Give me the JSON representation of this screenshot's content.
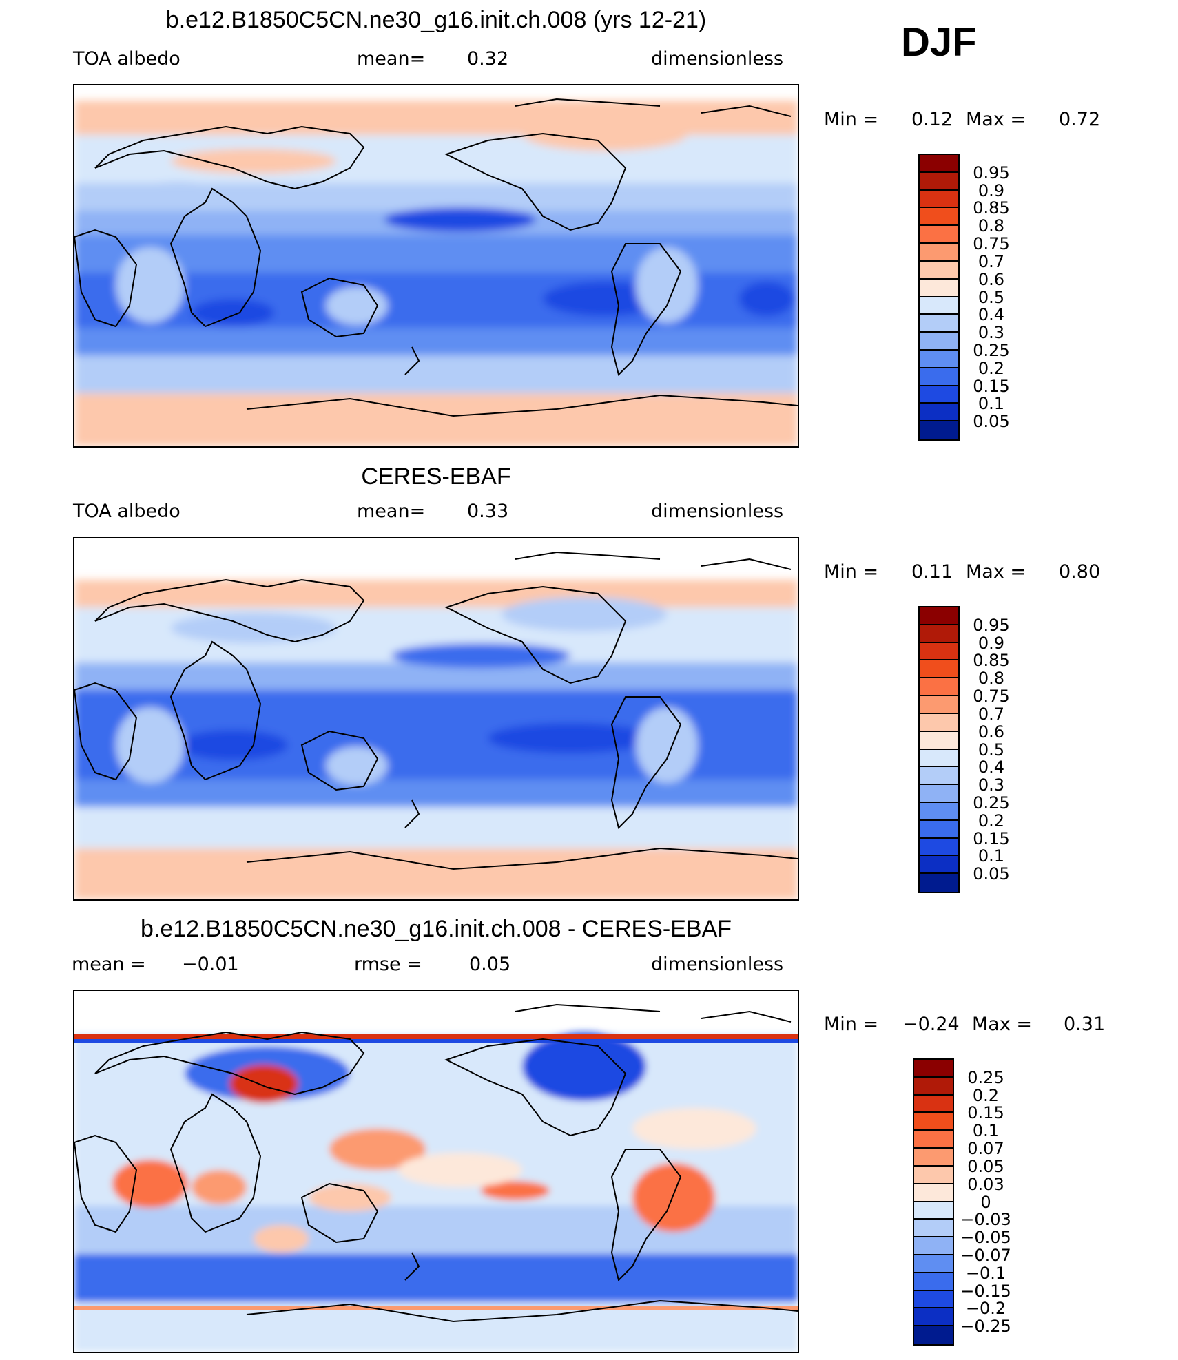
{
  "season": "DJF",
  "panels": [
    {
      "title": "b.e12.B1850C5CN.ne30_g16.init.ch.008 (yrs 12-21)",
      "left_label": "TOA albedo",
      "center_label": "mean=",
      "center_value": "0.32",
      "right_label": "dimensionless",
      "min_label": "Min =",
      "min_value": "0.12",
      "max_label": "Max =",
      "max_value": "0.72",
      "colorbar": {
        "labels": [
          "0.95",
          "0.9",
          "0.85",
          "0.8",
          "0.75",
          "0.7",
          "0.6",
          "0.5",
          "0.4",
          "0.3",
          "0.25",
          "0.2",
          "0.15",
          "0.1",
          "0.05"
        ],
        "colors": [
          "#8b0000",
          "#b01a08",
          "#d93212",
          "#f04e1c",
          "#fb7144",
          "#fc9a70",
          "#fdc8ac",
          "#fde8da",
          "#d8e8fb",
          "#b3cdf8",
          "#8fb2f5",
          "#5f8ef2",
          "#3a6ced",
          "#1e4ae2",
          "#0c2fc4",
          "#001b8f"
        ]
      }
    },
    {
      "title": "CERES-EBAF",
      "left_label": "TOA albedo",
      "center_label": "mean=",
      "center_value": "0.33",
      "right_label": "dimensionless",
      "min_label": "Min =",
      "min_value": "0.11",
      "max_label": "Max =",
      "max_value": "0.80",
      "colorbar": {
        "labels": [
          "0.95",
          "0.9",
          "0.85",
          "0.8",
          "0.75",
          "0.7",
          "0.6",
          "0.5",
          "0.4",
          "0.3",
          "0.25",
          "0.2",
          "0.15",
          "0.1",
          "0.05"
        ],
        "colors": [
          "#8b0000",
          "#b01a08",
          "#d93212",
          "#f04e1c",
          "#fb7144",
          "#fc9a70",
          "#fdc8ac",
          "#fde8da",
          "#d8e8fb",
          "#b3cdf8",
          "#8fb2f5",
          "#5f8ef2",
          "#3a6ced",
          "#1e4ae2",
          "#0c2fc4",
          "#001b8f"
        ]
      }
    },
    {
      "title": "b.e12.B1850C5CN.ne30_g16.init.ch.008 - CERES-EBAF",
      "left_label": "mean =",
      "left_value": "−0.01",
      "center_label": "rmse =",
      "center_value": "0.05",
      "right_label": "dimensionless",
      "min_label": "Min =",
      "min_value": "−0.24",
      "max_label": "Max =",
      "max_value": "0.31",
      "colorbar": {
        "labels": [
          "0.25",
          "0.2",
          "0.15",
          "0.1",
          "0.07",
          "0.05",
          "0.03",
          "0",
          "−0.03",
          "−0.05",
          "−0.07",
          "−0.1",
          "−0.15",
          "−0.2",
          "−0.25"
        ],
        "colors": [
          "#8b0000",
          "#b01a08",
          "#d93212",
          "#f04e1c",
          "#fb7144",
          "#fc9a70",
          "#fdc8ac",
          "#fde8da",
          "#d8e8fb",
          "#b3cdf8",
          "#8fb2f5",
          "#5f8ef2",
          "#3a6ced",
          "#1e4ae2",
          "#0c2fc4",
          "#001b8f"
        ]
      }
    }
  ]
}
